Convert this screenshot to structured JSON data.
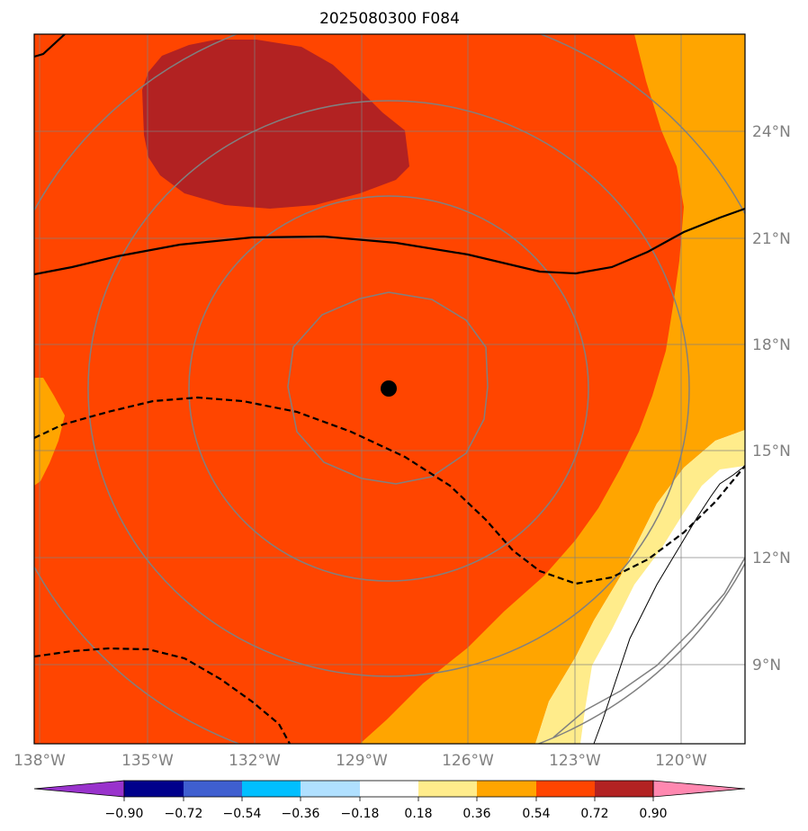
{
  "title": "2025080300 F084",
  "map": {
    "lon_ticks": [
      "138°W",
      "135°W",
      "132°W",
      "129°W",
      "126°W",
      "123°W",
      "120°W"
    ],
    "lat_ticks": [
      "24°N",
      "21°N",
      "18°N",
      "15°N",
      "12°N",
      "9°N"
    ],
    "storm_center": {
      "lon": -128.3,
      "lat": 16.8
    }
  },
  "colorbar": {
    "labels": [
      "−0.90",
      "−0.72",
      "−0.54",
      "−0.36",
      "−0.18",
      "0.18",
      "0.36",
      "0.54",
      "0.72",
      "0.90"
    ],
    "colors": [
      "#9933cc",
      "#00008b",
      "#3f5fd0",
      "#00bfff",
      "#b0e0ff",
      "#ffffff",
      "#ffec8b",
      "#ffa500",
      "#ff4500",
      "#b22222",
      "#ff88b0"
    ],
    "extend": "both"
  },
  "fill_colors": {
    "level_036_054": "#ffa500",
    "level_054_072": "#ff4500",
    "level_072_090": "#b22222",
    "level_018_036": "#ffec8b"
  }
}
